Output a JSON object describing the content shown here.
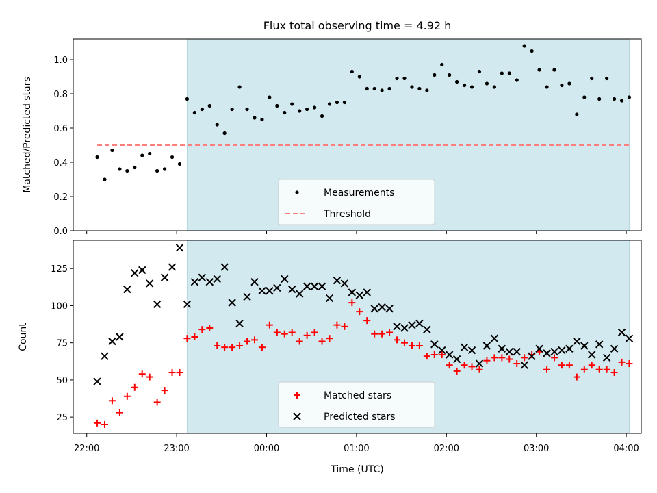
{
  "title": "Flux total observing time = 4.92 h",
  "colors": {
    "shade": "#d3e9f0",
    "measurement": "#000000",
    "threshold": "#ff7f7f",
    "matched": "#ff0000",
    "predicted": "#000000"
  },
  "chart_data": [
    {
      "type": "scatter",
      "ylabel": "Matched/Predicted stars",
      "ylim": [
        0,
        1.12
      ],
      "yticks": [
        0.0,
        0.2,
        0.4,
        0.6,
        0.8,
        1.0
      ],
      "ytick_labels": [
        "0.0",
        "0.2",
        "0.4",
        "0.6",
        "0.8",
        "1.0"
      ],
      "xlim": [
        "21:51",
        "04:10"
      ],
      "shaded_span": [
        "23:07",
        "04:02"
      ],
      "legend_placement": "lower-center",
      "threshold": {
        "name": "Threshold",
        "value": 0.5,
        "x_start": "22:07",
        "x_end": "04:02",
        "style": "dashed"
      },
      "series": [
        {
          "name": "Measurements",
          "marker": "dot",
          "points": [
            [
              "22:07",
              0.43
            ],
            [
              "22:12",
              0.3
            ],
            [
              "22:17",
              0.47
            ],
            [
              "22:22",
              0.36
            ],
            [
              "22:27",
              0.35
            ],
            [
              "22:32",
              0.37
            ],
            [
              "22:37",
              0.44
            ],
            [
              "22:42",
              0.45
            ],
            [
              "22:47",
              0.35
            ],
            [
              "22:52",
              0.36
            ],
            [
              "22:57",
              0.43
            ],
            [
              "23:02",
              0.39
            ],
            [
              "23:07",
              0.77
            ],
            [
              "23:12",
              0.69
            ],
            [
              "23:17",
              0.71
            ],
            [
              "23:22",
              0.73
            ],
            [
              "23:27",
              0.62
            ],
            [
              "23:32",
              0.57
            ],
            [
              "23:37",
              0.71
            ],
            [
              "23:42",
              0.84
            ],
            [
              "23:47",
              0.71
            ],
            [
              "23:52",
              0.66
            ],
            [
              "23:57",
              0.65
            ],
            [
              "00:02",
              0.78
            ],
            [
              "00:07",
              0.73
            ],
            [
              "00:12",
              0.69
            ],
            [
              "00:17",
              0.74
            ],
            [
              "00:22",
              0.7
            ],
            [
              "00:27",
              0.71
            ],
            [
              "00:32",
              0.72
            ],
            [
              "00:37",
              0.67
            ],
            [
              "00:42",
              0.74
            ],
            [
              "00:47",
              0.75
            ],
            [
              "00:52",
              0.75
            ],
            [
              "00:57",
              0.93
            ],
            [
              "01:02",
              0.9
            ],
            [
              "01:07",
              0.83
            ],
            [
              "01:12",
              0.83
            ],
            [
              "01:17",
              0.82
            ],
            [
              "01:22",
              0.83
            ],
            [
              "01:27",
              0.89
            ],
            [
              "01:32",
              0.89
            ],
            [
              "01:37",
              0.84
            ],
            [
              "01:42",
              0.83
            ],
            [
              "01:47",
              0.82
            ],
            [
              "01:52",
              0.91
            ],
            [
              "01:57",
              0.97
            ],
            [
              "02:02",
              0.91
            ],
            [
              "02:07",
              0.87
            ],
            [
              "02:12",
              0.85
            ],
            [
              "02:17",
              0.84
            ],
            [
              "02:22",
              0.93
            ],
            [
              "02:27",
              0.86
            ],
            [
              "02:32",
              0.84
            ],
            [
              "02:37",
              0.92
            ],
            [
              "02:42",
              0.92
            ],
            [
              "02:47",
              0.88
            ],
            [
              "02:52",
              1.08
            ],
            [
              "02:57",
              1.05
            ],
            [
              "03:02",
              0.94
            ],
            [
              "03:07",
              0.84
            ],
            [
              "03:12",
              0.94
            ],
            [
              "03:17",
              0.85
            ],
            [
              "03:22",
              0.86
            ],
            [
              "03:27",
              0.68
            ],
            [
              "03:32",
              0.78
            ],
            [
              "03:37",
              0.89
            ],
            [
              "03:42",
              0.77
            ],
            [
              "03:47",
              0.89
            ],
            [
              "03:52",
              0.77
            ],
            [
              "03:57",
              0.76
            ],
            [
              "04:02",
              0.78
            ]
          ]
        }
      ]
    },
    {
      "type": "scatter",
      "ylabel": "Count",
      "xlabel": "Time (UTC)",
      "ylim": [
        14,
        144
      ],
      "yticks": [
        25,
        50,
        75,
        100,
        125
      ],
      "ytick_labels": [
        "25",
        "50",
        "75",
        "100",
        "125"
      ],
      "xlim": [
        "21:51",
        "04:10"
      ],
      "xticks": [
        "22:00",
        "23:00",
        "00:00",
        "01:00",
        "02:00",
        "03:00",
        "04:00"
      ],
      "xtick_labels": [
        "22:00",
        "23:00",
        "00:00",
        "01:00",
        "02:00",
        "03:00",
        "04:00"
      ],
      "shaded_span": [
        "23:07",
        "04:02"
      ],
      "legend_placement": "lower-center",
      "series": [
        {
          "name": "Matched stars",
          "marker": "plus",
          "points": [
            [
              "22:07",
              21
            ],
            [
              "22:12",
              20
            ],
            [
              "22:17",
              36
            ],
            [
              "22:22",
              28
            ],
            [
              "22:27",
              39
            ],
            [
              "22:32",
              45
            ],
            [
              "22:37",
              54
            ],
            [
              "22:42",
              52
            ],
            [
              "22:47",
              35
            ],
            [
              "22:52",
              43
            ],
            [
              "22:57",
              55
            ],
            [
              "23:02",
              55
            ],
            [
              "23:07",
              78
            ],
            [
              "23:12",
              79
            ],
            [
              "23:17",
              84
            ],
            [
              "23:22",
              85
            ],
            [
              "23:27",
              73
            ],
            [
              "23:32",
              72
            ],
            [
              "23:37",
              72
            ],
            [
              "23:42",
              73
            ],
            [
              "23:47",
              76
            ],
            [
              "23:52",
              77
            ],
            [
              "23:57",
              72
            ],
            [
              "00:02",
              87
            ],
            [
              "00:07",
              82
            ],
            [
              "00:12",
              81
            ],
            [
              "00:17",
              82
            ],
            [
              "00:22",
              76
            ],
            [
              "00:27",
              80
            ],
            [
              "00:32",
              82
            ],
            [
              "00:37",
              76
            ],
            [
              "00:42",
              78
            ],
            [
              "00:47",
              87
            ],
            [
              "00:52",
              86
            ],
            [
              "00:57",
              102
            ],
            [
              "01:02",
              96
            ],
            [
              "01:07",
              90
            ],
            [
              "01:12",
              81
            ],
            [
              "01:17",
              81
            ],
            [
              "01:22",
              82
            ],
            [
              "01:27",
              77
            ],
            [
              "01:32",
              75
            ],
            [
              "01:37",
              73
            ],
            [
              "01:42",
              73
            ],
            [
              "01:47",
              66
            ],
            [
              "01:52",
              67
            ],
            [
              "01:57",
              67
            ],
            [
              "02:02",
              60
            ],
            [
              "02:07",
              56
            ],
            [
              "02:12",
              60
            ],
            [
              "02:17",
              59
            ],
            [
              "02:22",
              57
            ],
            [
              "02:27",
              63
            ],
            [
              "02:32",
              65
            ],
            [
              "02:37",
              65
            ],
            [
              "02:42",
              64
            ],
            [
              "02:47",
              61
            ],
            [
              "02:52",
              65
            ],
            [
              "02:57",
              67
            ],
            [
              "03:02",
              69
            ],
            [
              "03:07",
              57
            ],
            [
              "03:12",
              65
            ],
            [
              "03:17",
              60
            ],
            [
              "03:22",
              60
            ],
            [
              "03:27",
              52
            ],
            [
              "03:32",
              57
            ],
            [
              "03:37",
              60
            ],
            [
              "03:42",
              57
            ],
            [
              "03:47",
              57
            ],
            [
              "03:52",
              55
            ],
            [
              "03:57",
              62
            ],
            [
              "04:02",
              61
            ]
          ]
        },
        {
          "name": "Predicted stars",
          "marker": "x",
          "points": [
            [
              "22:07",
              49
            ],
            [
              "22:12",
              66
            ],
            [
              "22:17",
              76
            ],
            [
              "22:22",
              79
            ],
            [
              "22:27",
              111
            ],
            [
              "22:32",
              122
            ],
            [
              "22:37",
              124
            ],
            [
              "22:42",
              115
            ],
            [
              "22:47",
              101
            ],
            [
              "22:52",
              119
            ],
            [
              "22:57",
              126
            ],
            [
              "23:02",
              139
            ],
            [
              "23:07",
              101
            ],
            [
              "23:12",
              116
            ],
            [
              "23:17",
              119
            ],
            [
              "23:22",
              116
            ],
            [
              "23:27",
              118
            ],
            [
              "23:32",
              126
            ],
            [
              "23:37",
              102
            ],
            [
              "23:42",
              88
            ],
            [
              "23:47",
              106
            ],
            [
              "23:52",
              116
            ],
            [
              "23:57",
              110
            ],
            [
              "00:02",
              110
            ],
            [
              "00:07",
              112
            ],
            [
              "00:12",
              118
            ],
            [
              "00:17",
              111
            ],
            [
              "00:22",
              108
            ],
            [
              "00:27",
              113
            ],
            [
              "00:32",
              113
            ],
            [
              "00:37",
              113
            ],
            [
              "00:42",
              105
            ],
            [
              "00:47",
              117
            ],
            [
              "00:52",
              115
            ],
            [
              "00:57",
              109
            ],
            [
              "01:02",
              107
            ],
            [
              "01:07",
              109
            ],
            [
              "01:12",
              98
            ],
            [
              "01:17",
              99
            ],
            [
              "01:22",
              98
            ],
            [
              "01:27",
              86
            ],
            [
              "01:32",
              85
            ],
            [
              "01:37",
              87
            ],
            [
              "01:42",
              88
            ],
            [
              "01:47",
              84
            ],
            [
              "01:52",
              74
            ],
            [
              "01:57",
              70
            ],
            [
              "02:02",
              67
            ],
            [
              "02:07",
              64
            ],
            [
              "02:12",
              72
            ],
            [
              "02:17",
              70
            ],
            [
              "02:22",
              61
            ],
            [
              "02:27",
              73
            ],
            [
              "02:32",
              78
            ],
            [
              "02:37",
              71
            ],
            [
              "02:42",
              69
            ],
            [
              "02:47",
              69
            ],
            [
              "02:52",
              60
            ],
            [
              "02:57",
              66
            ],
            [
              "03:02",
              71
            ],
            [
              "03:07",
              68
            ],
            [
              "03:12",
              69
            ],
            [
              "03:17",
              70
            ],
            [
              "03:22",
              71
            ],
            [
              "03:27",
              76
            ],
            [
              "03:32",
              73
            ],
            [
              "03:37",
              67
            ],
            [
              "03:42",
              74
            ],
            [
              "03:47",
              65
            ],
            [
              "03:52",
              71
            ],
            [
              "03:57",
              82
            ],
            [
              "04:02",
              78
            ]
          ]
        }
      ]
    }
  ]
}
